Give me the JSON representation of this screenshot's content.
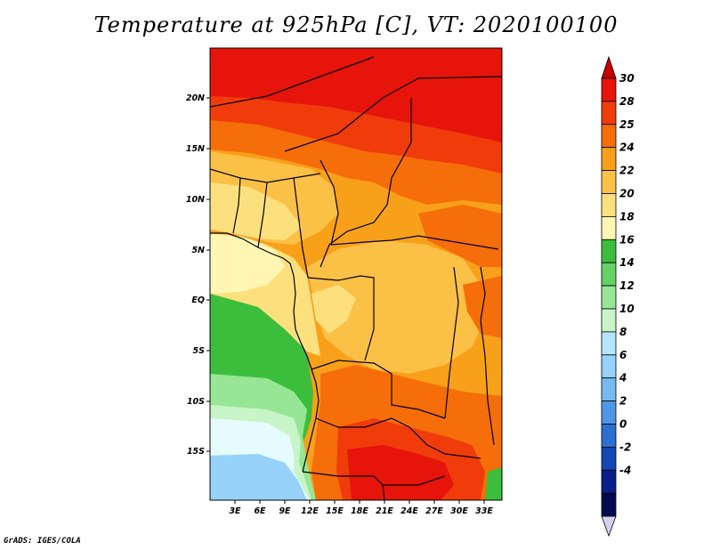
{
  "title": "Temperature at 925hPa [C], VT: 2020100100",
  "credit": "GrADS: IGES/COLA",
  "map": {
    "variable": "925hPa temperature",
    "units": "C",
    "x_ticks": [
      "3E",
      "6E",
      "9E",
      "12E",
      "15E",
      "18E",
      "21E",
      "24E",
      "27E",
      "30E",
      "33E"
    ],
    "y_ticks": [
      "20N",
      "15N",
      "10N",
      "5N",
      "EQ",
      "5S",
      "10S",
      "15S"
    ]
  },
  "colorbar": {
    "labels": [
      "30",
      "28",
      "25",
      "24",
      "22",
      "20",
      "18",
      "16",
      "14",
      "12",
      "10",
      "8",
      "6",
      "4",
      "2",
      "0",
      "-2",
      "-4"
    ],
    "colors": [
      "#e6140a",
      "#f03c0a",
      "#f56e0a",
      "#f8a01a",
      "#fbc046",
      "#fde07e",
      "#fff6b4",
      "#3cbe3c",
      "#64d264",
      "#96e696",
      "#c8f5c8",
      "#b4e6ff",
      "#96d2fa",
      "#78b9f0",
      "#5096e6",
      "#2d6ed2",
      "#1446b4",
      "#0a1e8c",
      "#000a50"
    ],
    "top_arrow_color": "#c80000",
    "bottom_arrow_color": "#d2d2f0"
  }
}
